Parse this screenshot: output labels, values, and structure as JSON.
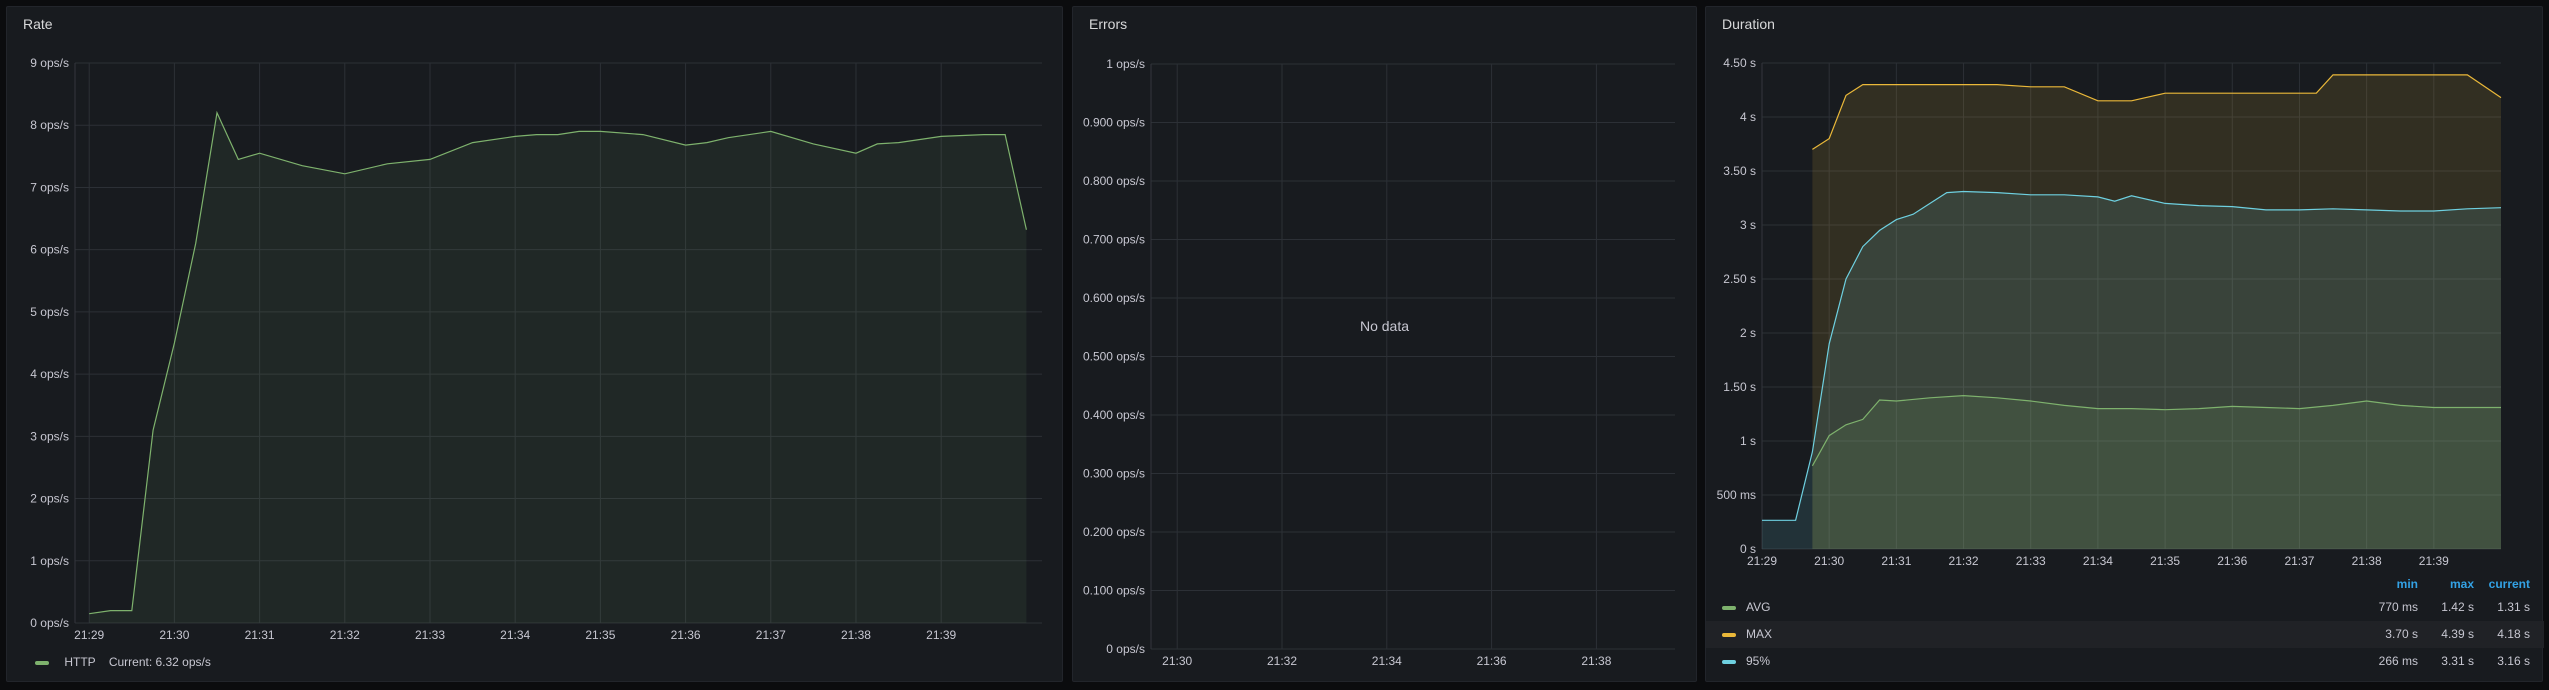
{
  "panels": {
    "rate": {
      "title": "Rate",
      "legend": {
        "series_name": "HTTP",
        "current_text": "Current: 6.32 ops/s",
        "color": "#7eb26d"
      }
    },
    "errors": {
      "title": "Errors",
      "no_data": "No data"
    },
    "duration": {
      "title": "Duration",
      "legend_headers": {
        "min": "min",
        "max": "max",
        "current": "current"
      },
      "legend_rows": [
        {
          "name": "AVG",
          "color": "#7eb26d",
          "min": "770 ms",
          "max": "1.42 s",
          "current": "1.31 s"
        },
        {
          "name": "MAX",
          "color": "#eab839",
          "min": "3.70 s",
          "max": "4.39 s",
          "current": "4.18 s"
        },
        {
          "name": "95%",
          "color": "#6ed0e0",
          "min": "266 ms",
          "max": "3.31 s",
          "current": "3.16 s"
        }
      ]
    }
  },
  "chart_data": [
    {
      "type": "area",
      "title": "Rate",
      "yticks": [
        "0 ops/s",
        "1 ops/s",
        "2 ops/s",
        "3 ops/s",
        "4 ops/s",
        "5 ops/s",
        "6 ops/s",
        "7 ops/s",
        "8 ops/s",
        "9 ops/s"
      ],
      "xticks": [
        "21:29",
        "21:30",
        "21:31",
        "21:32",
        "21:33",
        "21:34",
        "21:35",
        "21:36",
        "21:37",
        "21:38",
        "21:39"
      ],
      "ylim": [
        0,
        9
      ],
      "xlim_minutes": [
        21.48,
        21.67
      ],
      "series": [
        {
          "name": "HTTP",
          "color": "#7eb26d",
          "t": [
            "21:29:00",
            "21:29:15",
            "21:29:30",
            "21:29:45",
            "21:30:00",
            "21:30:15",
            "21:30:30",
            "21:30:45",
            "21:31:00",
            "21:31:30",
            "21:32:00",
            "21:32:30",
            "21:33:00",
            "21:33:30",
            "21:34:00",
            "21:34:15",
            "21:34:30",
            "21:34:45",
            "21:35:00",
            "21:35:30",
            "21:36:00",
            "21:36:15",
            "21:36:30",
            "21:37:00",
            "21:37:30",
            "21:38:00",
            "21:38:15",
            "21:38:30",
            "21:39:00",
            "21:39:30",
            "21:39:45",
            "21:40:00"
          ],
          "values": [
            0.15,
            0.2,
            0.2,
            3.1,
            4.5,
            6.1,
            8.2,
            7.45,
            7.55,
            7.35,
            7.22,
            7.38,
            7.45,
            7.72,
            7.82,
            7.85,
            7.85,
            7.9,
            7.9,
            7.85,
            7.68,
            7.72,
            7.8,
            7.9,
            7.7,
            7.55,
            7.7,
            7.72,
            7.82,
            7.85,
            7.85,
            6.32
          ]
        }
      ]
    },
    {
      "type": "line",
      "title": "Errors",
      "yticks": [
        "0 ops/s",
        "0.100 ops/s",
        "0.200 ops/s",
        "0.300 ops/s",
        "0.400 ops/s",
        "0.500 ops/s",
        "0.600 ops/s",
        "0.700 ops/s",
        "0.800 ops/s",
        "0.900 ops/s",
        "1 ops/s"
      ],
      "xticks": [
        "21:30",
        "21:32",
        "21:34",
        "21:36",
        "21:38"
      ],
      "ylim": [
        0,
        1
      ],
      "series": []
    },
    {
      "type": "area",
      "title": "Duration",
      "yticks": [
        "0 s",
        "500 ms",
        "1 s",
        "1.50 s",
        "2 s",
        "2.50 s",
        "3 s",
        "3.50 s",
        "4 s",
        "4.50 s"
      ],
      "xticks": [
        "21:29",
        "21:30",
        "21:31",
        "21:32",
        "21:33",
        "21:34",
        "21:35",
        "21:36",
        "21:37",
        "21:38",
        "21:39"
      ],
      "ylim": [
        0,
        4.5
      ],
      "series": [
        {
          "name": "MAX",
          "color": "#eab839",
          "t": [
            "21:29:45",
            "21:30:00",
            "21:30:15",
            "21:30:30",
            "21:31:00",
            "21:31:30",
            "21:32:00",
            "21:32:30",
            "21:33:00",
            "21:33:30",
            "21:34:00",
            "21:34:30",
            "21:35:00",
            "21:35:30",
            "21:36:00",
            "21:36:30",
            "21:37:00",
            "21:37:15",
            "21:37:30",
            "21:38:00",
            "21:38:30",
            "21:39:00",
            "21:39:15",
            "21:39:30",
            "21:40:00"
          ],
          "values": [
            3.7,
            3.8,
            4.2,
            4.3,
            4.3,
            4.3,
            4.3,
            4.3,
            4.28,
            4.28,
            4.15,
            4.15,
            4.22,
            4.22,
            4.22,
            4.22,
            4.22,
            4.22,
            4.39,
            4.39,
            4.39,
            4.39,
            4.39,
            4.39,
            4.18
          ]
        },
        {
          "name": "95%",
          "color": "#6ed0e0",
          "t": [
            "21:29:00",
            "21:29:15",
            "21:29:30",
            "21:29:45",
            "21:30:00",
            "21:30:15",
            "21:30:30",
            "21:30:45",
            "21:31:00",
            "21:31:15",
            "21:31:30",
            "21:31:45",
            "21:32:00",
            "21:32:30",
            "21:33:00",
            "21:33:30",
            "21:34:00",
            "21:34:15",
            "21:34:30",
            "21:35:00",
            "21:35:30",
            "21:36:00",
            "21:36:30",
            "21:37:00",
            "21:37:30",
            "21:38:00",
            "21:38:30",
            "21:39:00",
            "21:39:30",
            "21:40:00"
          ],
          "values": [
            0.266,
            0.266,
            0.266,
            0.9,
            1.9,
            2.5,
            2.8,
            2.95,
            3.05,
            3.1,
            3.2,
            3.3,
            3.31,
            3.3,
            3.28,
            3.28,
            3.26,
            3.22,
            3.27,
            3.2,
            3.18,
            3.17,
            3.14,
            3.14,
            3.15,
            3.14,
            3.13,
            3.13,
            3.15,
            3.16
          ]
        },
        {
          "name": "AVG",
          "color": "#7eb26d",
          "t": [
            "21:29:45",
            "21:30:00",
            "21:30:15",
            "21:30:30",
            "21:30:45",
            "21:31:00",
            "21:31:30",
            "21:32:00",
            "21:32:30",
            "21:33:00",
            "21:33:30",
            "21:34:00",
            "21:34:30",
            "21:35:00",
            "21:35:30",
            "21:36:00",
            "21:36:30",
            "21:37:00",
            "21:37:30",
            "21:38:00",
            "21:38:30",
            "21:39:00",
            "21:39:30",
            "21:40:00"
          ],
          "values": [
            0.77,
            1.05,
            1.15,
            1.2,
            1.38,
            1.37,
            1.4,
            1.42,
            1.4,
            1.37,
            1.33,
            1.3,
            1.3,
            1.29,
            1.3,
            1.32,
            1.31,
            1.3,
            1.33,
            1.37,
            1.33,
            1.31,
            1.31,
            1.31
          ]
        }
      ]
    }
  ]
}
